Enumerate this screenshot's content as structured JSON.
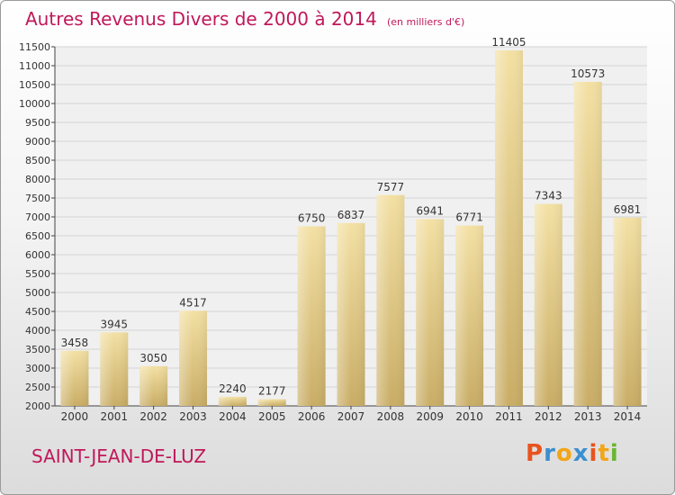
{
  "title": "Autres Revenus Divers de 2000 à 2014",
  "unit_note": "(en milliers d'€)",
  "city": "SAINT-JEAN-DE-LUZ",
  "logo_text": "Proxiti",
  "logo_colors": [
    "#e8541e",
    "#3b8fd0",
    "#f2a516",
    "#3b8fd0",
    "#e8541e",
    "#f2a516",
    "#69b62f"
  ],
  "colors": {
    "title": "#c0185a",
    "bar_light": "#f3e0a3",
    "bar_dark": "#c9ad66",
    "grid": "#d3d3d3",
    "plot_bg": "#f0f0f0"
  },
  "chart_data": {
    "type": "bar",
    "categories": [
      "2000",
      "2001",
      "2002",
      "2003",
      "2004",
      "2005",
      "2006",
      "2007",
      "2008",
      "2009",
      "2010",
      "2011",
      "2012",
      "2013",
      "2014"
    ],
    "values": [
      3458,
      3945,
      3050,
      4517,
      2240,
      2177,
      6750,
      6837,
      7577,
      6941,
      6771,
      11405,
      7343,
      10573,
      6981
    ],
    "ylim": [
      2000,
      11500
    ],
    "yticks": [
      2000,
      2500,
      3000,
      3500,
      4000,
      4500,
      5000,
      5500,
      6000,
      6500,
      7000,
      7500,
      8000,
      8500,
      9000,
      9500,
      10000,
      10500,
      11000,
      11500
    ],
    "grid": true,
    "title": "Autres Revenus Divers de 2000 à 2014",
    "xlabel": "",
    "ylabel": ""
  }
}
